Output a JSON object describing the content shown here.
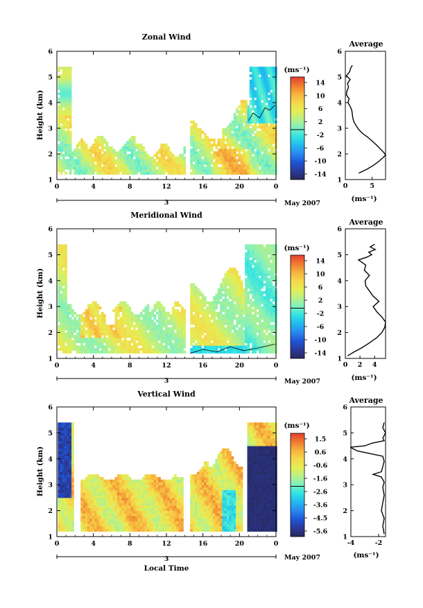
{
  "colors": {
    "bar_stops": [
      "#28285c",
      "#2a3a9a",
      "#1f55d6",
      "#2a87f0",
      "#22b8ee",
      "#2ee3e3",
      "#7df0c2",
      "#b6f08a",
      "#e4ee55",
      "#f6d74a",
      "#f6b23d",
      "#f07a30",
      "#e34030"
    ],
    "contour": "#000000"
  },
  "footer": {
    "date_label": "May 2007",
    "day_label": "3",
    "time_axis_title": "Local Time"
  },
  "chart_data": [
    {
      "type": "heatmap",
      "title": "Zonal Wind",
      "ylabel": "Height (km)",
      "xticks": [
        "0",
        "4",
        "8",
        "12",
        "16",
        "20",
        "0"
      ],
      "yticks": [
        "1",
        "2",
        "3",
        "4",
        "5",
        "6"
      ],
      "xlim": [
        0,
        24
      ],
      "ylim": [
        1,
        6
      ],
      "colorbar": {
        "unit": "(ms⁻¹)",
        "ticks": [
          "14",
          "10",
          "6",
          "2",
          "-2",
          "-6",
          "-10",
          "-14"
        ],
        "range": [
          -16,
          16
        ]
      },
      "profile": {
        "title": "Average",
        "xlabel": "(ms⁻¹)",
        "xticks": [
          "0",
          "5"
        ],
        "xlim": [
          0,
          7.5
        ],
        "height_km": [
          1.25,
          1.4,
          1.55,
          1.7,
          1.85,
          1.95,
          2.05,
          2.2,
          2.35,
          2.5,
          2.65,
          2.8,
          2.95,
          3.1,
          3.25,
          3.4,
          3.55,
          3.7,
          3.85,
          4.0,
          4.15,
          4.3,
          4.45,
          4.6,
          4.75,
          4.9,
          5.05,
          5.2,
          5.35,
          5.45
        ],
        "wind": [
          2.5,
          4.0,
          5.2,
          6.2,
          7.0,
          7.5,
          7.2,
          6.5,
          5.8,
          5.0,
          4.2,
          3.2,
          2.5,
          2.0,
          1.6,
          1.4,
          1.3,
          1.2,
          0.9,
          0.5,
          0.7,
          0.2,
          0.3,
          0.6,
          0.4,
          0.9,
          0.2,
          0.8,
          1.0,
          1.3
        ]
      }
    },
    {
      "type": "heatmap",
      "title": "Meridional Wind",
      "ylabel": "Height (km)",
      "xticks": [
        "0",
        "4",
        "8",
        "12",
        "16",
        "20",
        "0"
      ],
      "yticks": [
        "1",
        "2",
        "3",
        "4",
        "5",
        "6"
      ],
      "xlim": [
        0,
        24
      ],
      "ylim": [
        1,
        6
      ],
      "colorbar": {
        "unit": "(ms⁻¹)",
        "ticks": [
          "14",
          "10",
          "6",
          "2",
          "-2",
          "-6",
          "-10",
          "-14"
        ],
        "range": [
          -16,
          16
        ]
      },
      "profile": {
        "title": "Average",
        "xlabel": "(ms⁻¹)",
        "xticks": [
          "0",
          "2",
          "4"
        ],
        "xlim": [
          0,
          5.5
        ],
        "height_km": [
          1.1,
          1.25,
          1.4,
          1.6,
          1.8,
          2.0,
          2.2,
          2.4,
          2.6,
          2.8,
          3.0,
          3.2,
          3.4,
          3.6,
          3.8,
          4.0,
          4.2,
          4.4,
          4.6,
          4.8,
          4.9,
          5.0,
          5.1,
          5.2,
          5.3,
          5.4
        ],
        "wind": [
          0.3,
          1.2,
          2.2,
          3.3,
          4.3,
          5.0,
          5.4,
          5.5,
          5.0,
          4.3,
          3.8,
          4.6,
          3.8,
          3.3,
          2.8,
          2.7,
          3.3,
          2.6,
          2.8,
          1.8,
          2.9,
          3.6,
          3.2,
          4.1,
          3.4,
          4.0
        ]
      }
    },
    {
      "type": "heatmap",
      "title": "Vertical Wind",
      "ylabel": "Height (km)",
      "xlabel": "Local Time",
      "xticks": [
        "0",
        "4",
        "8",
        "12",
        "16",
        "20",
        "0"
      ],
      "yticks": [
        "1",
        "2",
        "3",
        "4",
        "5",
        "6"
      ],
      "xlim": [
        0,
        24
      ],
      "ylim": [
        1,
        6
      ],
      "colorbar": {
        "unit": "(ms⁻¹)",
        "ticks": [
          "1.5",
          "0.6",
          "-0.6",
          "-1.6",
          "-2.6",
          "-3.6",
          "-4.5",
          "-5.6"
        ],
        "range": [
          -6,
          2
        ]
      },
      "profile": {
        "title": "Average",
        "xlabel": "(ms⁻¹)",
        "xticks": [
          "-4",
          "-2"
        ],
        "xlim": [
          -4,
          -1.5
        ],
        "height_km": [
          1.1,
          1.4,
          1.7,
          2.0,
          2.3,
          2.6,
          2.9,
          3.1,
          3.3,
          3.4,
          3.5,
          3.7,
          3.9,
          4.1,
          4.3,
          4.4,
          4.45,
          4.5,
          4.6,
          4.7,
          4.8,
          5.0,
          5.2,
          5.4
        ],
        "wind": [
          -1.6,
          -1.7,
          -1.6,
          -1.8,
          -1.7,
          -1.6,
          -1.7,
          -1.6,
          -1.8,
          -2.4,
          -1.8,
          -1.7,
          -1.6,
          -1.7,
          -3.5,
          -3.9,
          -4.0,
          -3.0,
          -2.5,
          -1.6,
          -1.7,
          -1.5,
          -1.7,
          -1.6
        ]
      }
    }
  ]
}
